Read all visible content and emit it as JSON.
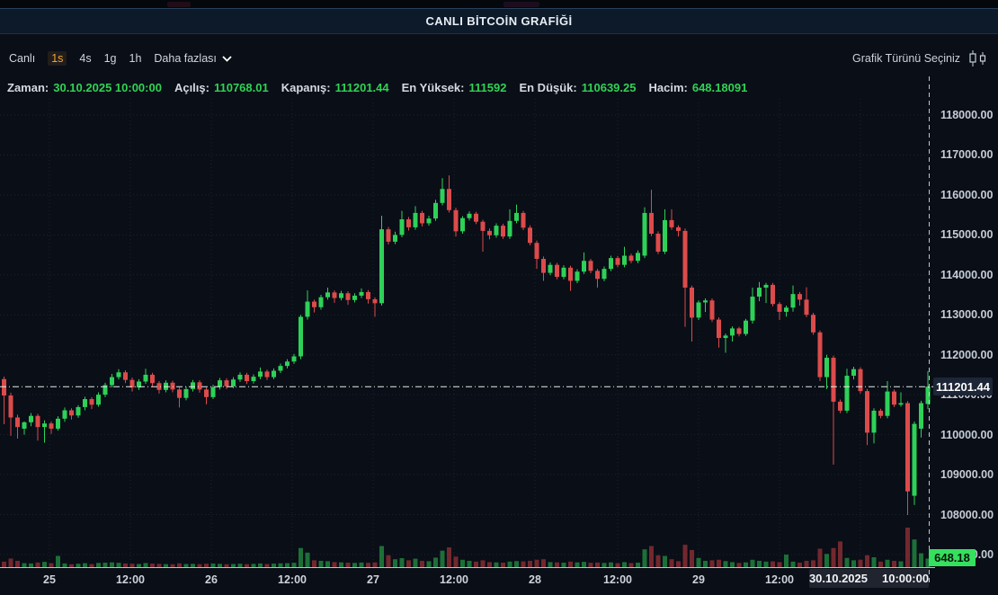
{
  "page": {
    "title": "CANLI BİTCOİN GRAFİĞİ"
  },
  "toolbar": {
    "timeframes": [
      "Canlı",
      "1s",
      "4s",
      "1g",
      "1h"
    ],
    "active_timeframe": "1s",
    "more_label": "Daha fazlası",
    "chart_type_label": "Grafik Türünü Seçiniz"
  },
  "info": {
    "items": [
      {
        "label": "Zaman:",
        "value": "30.10.2025 10:00:00"
      },
      {
        "label": "Açılış:",
        "value": "110768.01"
      },
      {
        "label": "Kapanış:",
        "value": "111201.44"
      },
      {
        "label": "En Yüksek:",
        "value": "111592"
      },
      {
        "label": "En Düşük:",
        "value": "110639.25"
      },
      {
        "label": "Hacim:",
        "value": "648.18091"
      }
    ]
  },
  "chart_data": {
    "type": "candlestick",
    "interval": "1h",
    "title": "CANLI BİTCOİN GRAFİĞİ",
    "legend_position": "none",
    "grid": true,
    "y_ticks": [
      118000,
      117000,
      116000,
      115000,
      114000,
      113000,
      112000,
      111000,
      110000,
      109000,
      108000,
      107000
    ],
    "y_tick_format": "2-decimals",
    "ylim": [
      107000,
      118400
    ],
    "x_ticks": [
      {
        "label": "25",
        "x": 55
      },
      {
        "label": "12:00",
        "x": 145
      },
      {
        "label": "26",
        "x": 235
      },
      {
        "label": "12:00",
        "x": 325
      },
      {
        "label": "27",
        "x": 415
      },
      {
        "label": "12:00",
        "x": 505
      },
      {
        "label": "28",
        "x": 595
      },
      {
        "label": "12:00",
        "x": 687
      },
      {
        "label": "29",
        "x": 777
      },
      {
        "label": "12:00",
        "x": 867
      },
      {
        "label": "",
        "x": 957
      }
    ],
    "last_price_label": "111201.44",
    "last_volume_label": "648.18",
    "last_time_label": {
      "date": "30.10.2025",
      "time": "10:00:00"
    },
    "colors": {
      "up": "#2ed158",
      "down": "#dc4b4b",
      "vol_up": "rgba(46,209,88,0.5)",
      "vol_down": "rgba(185,58,62,0.6)",
      "accent_green": "#30d354",
      "accent_orange": "#f2a43a",
      "label_green_bg": "#35e05e"
    },
    "candles_format": [
      "open",
      "high",
      "low",
      "close",
      "volume"
    ],
    "candles": [
      [
        111390,
        111450,
        110260,
        110980,
        420
      ],
      [
        110980,
        111050,
        109970,
        110430,
        650
      ],
      [
        110430,
        110500,
        109900,
        110190,
        480
      ],
      [
        110150,
        110330,
        110000,
        110310,
        300
      ],
      [
        110310,
        110540,
        110210,
        110470,
        280
      ],
      [
        110470,
        110520,
        109850,
        110190,
        350
      ],
      [
        110190,
        110360,
        109800,
        110280,
        400
      ],
      [
        110280,
        110330,
        110020,
        110150,
        300
      ],
      [
        110150,
        110460,
        110100,
        110400,
        850
      ],
      [
        110400,
        110680,
        110320,
        110610,
        280
      ],
      [
        110610,
        110660,
        110380,
        110480,
        220
      ],
      [
        110480,
        110740,
        110420,
        110690,
        260
      ],
      [
        110690,
        110950,
        110610,
        110890,
        300
      ],
      [
        110890,
        110940,
        110640,
        110750,
        230
      ],
      [
        110750,
        111060,
        110700,
        111000,
        320
      ],
      [
        111000,
        111300,
        110940,
        111240,
        340
      ],
      [
        111240,
        111520,
        111180,
        111440,
        360
      ],
      [
        111440,
        111640,
        111380,
        111560,
        330
      ],
      [
        111560,
        111610,
        111290,
        111370,
        280
      ],
      [
        111370,
        111430,
        111080,
        111180,
        260
      ],
      [
        111180,
        111390,
        111120,
        111330,
        240
      ],
      [
        111330,
        111650,
        111270,
        111500,
        310
      ],
      [
        111500,
        111550,
        111210,
        111290,
        270
      ],
      [
        111290,
        111340,
        111030,
        111120,
        250
      ],
      [
        111120,
        111360,
        111060,
        111300,
        230
      ],
      [
        111300,
        111350,
        111060,
        111130,
        220
      ],
      [
        111130,
        111180,
        110680,
        110920,
        290
      ],
      [
        110920,
        111200,
        110860,
        111140,
        240
      ],
      [
        111140,
        111370,
        111080,
        111310,
        250
      ],
      [
        111310,
        111360,
        111050,
        111130,
        230
      ],
      [
        111130,
        111180,
        110760,
        110940,
        260
      ],
      [
        110940,
        111250,
        110890,
        111190,
        270
      ],
      [
        111190,
        111420,
        111130,
        111360,
        250
      ],
      [
        111360,
        111410,
        111140,
        111210,
        220
      ],
      [
        111210,
        111440,
        111160,
        111380,
        240
      ],
      [
        111380,
        111560,
        111320,
        111500,
        260
      ],
      [
        111500,
        111550,
        111270,
        111340,
        230
      ],
      [
        111340,
        111510,
        111280,
        111450,
        250
      ],
      [
        111450,
        111680,
        111390,
        111580,
        280
      ],
      [
        111580,
        111630,
        111370,
        111440,
        240
      ],
      [
        111440,
        111660,
        111390,
        111600,
        270
      ],
      [
        111600,
        111780,
        111540,
        111720,
        290
      ],
      [
        111720,
        111890,
        111660,
        111830,
        300
      ],
      [
        111830,
        112020,
        111770,
        111960,
        330
      ],
      [
        111960,
        113000,
        111890,
        112950,
        1450
      ],
      [
        112950,
        113610,
        112880,
        113330,
        1100
      ],
      [
        113330,
        113380,
        113060,
        113190,
        520
      ],
      [
        113190,
        113500,
        113130,
        113440,
        480
      ],
      [
        113440,
        113680,
        113380,
        113560,
        450
      ],
      [
        113560,
        113610,
        113300,
        113420,
        380
      ],
      [
        113420,
        113600,
        113360,
        113540,
        360
      ],
      [
        113540,
        113590,
        113250,
        113370,
        340
      ],
      [
        113370,
        113540,
        113310,
        113480,
        320
      ],
      [
        113480,
        113660,
        113420,
        113570,
        350
      ],
      [
        113570,
        113620,
        113280,
        113390,
        330
      ],
      [
        113390,
        113440,
        112950,
        113290,
        360
      ],
      [
        113290,
        115480,
        113230,
        115140,
        1600
      ],
      [
        115140,
        115200,
        114760,
        114830,
        900
      ],
      [
        114830,
        115080,
        114770,
        115000,
        600
      ],
      [
        115000,
        115600,
        114940,
        115390,
        680
      ],
      [
        115390,
        115450,
        115110,
        115190,
        520
      ],
      [
        115190,
        115720,
        115130,
        115550,
        640
      ],
      [
        115550,
        115600,
        115210,
        115290,
        480
      ],
      [
        115290,
        115480,
        115230,
        115410,
        450
      ],
      [
        115410,
        115880,
        115350,
        115800,
        720
      ],
      [
        115800,
        116420,
        115740,
        116150,
        1250
      ],
      [
        116150,
        116490,
        115560,
        115620,
        1500
      ],
      [
        115620,
        115680,
        114960,
        115090,
        800
      ],
      [
        115090,
        115470,
        115030,
        115420,
        560
      ],
      [
        115420,
        115590,
        115360,
        115530,
        480
      ],
      [
        115530,
        115580,
        115270,
        115330,
        420
      ],
      [
        115330,
        115380,
        114580,
        115100,
        520
      ],
      [
        115100,
        115160,
        114890,
        114990,
        380
      ],
      [
        114990,
        115290,
        114930,
        115230,
        360
      ],
      [
        115230,
        115280,
        114900,
        114960,
        340
      ],
      [
        114960,
        115640,
        114900,
        115350,
        420
      ],
      [
        115350,
        115760,
        115290,
        115550,
        460
      ],
      [
        115550,
        115600,
        115120,
        115180,
        440
      ],
      [
        115180,
        115240,
        114740,
        114800,
        480
      ],
      [
        114800,
        114860,
        114150,
        114400,
        560
      ],
      [
        114400,
        114460,
        113850,
        114050,
        600
      ],
      [
        114050,
        114310,
        113990,
        114250,
        380
      ],
      [
        114250,
        114300,
        113890,
        113950,
        360
      ],
      [
        113950,
        114240,
        113890,
        114180,
        340
      ],
      [
        114180,
        114230,
        113600,
        113850,
        420
      ],
      [
        113850,
        114140,
        113790,
        114080,
        360
      ],
      [
        114080,
        114560,
        114020,
        114350,
        400
      ],
      [
        114350,
        114400,
        114040,
        114100,
        330
      ],
      [
        114100,
        114150,
        113680,
        113900,
        350
      ],
      [
        113900,
        114210,
        113840,
        114150,
        320
      ],
      [
        114150,
        114480,
        114090,
        114420,
        360
      ],
      [
        114420,
        114470,
        114190,
        114250,
        300
      ],
      [
        114250,
        114700,
        114190,
        114480,
        380
      ],
      [
        114480,
        114530,
        114290,
        114350,
        310
      ],
      [
        114350,
        114610,
        114290,
        114550,
        340
      ],
      [
        114480,
        115690,
        114420,
        115550,
        1350
      ],
      [
        115550,
        116130,
        114970,
        115030,
        1600
      ],
      [
        115030,
        115090,
        114520,
        114580,
        900
      ],
      [
        114580,
        115640,
        114520,
        115370,
        850
      ],
      [
        115370,
        115640,
        115130,
        115190,
        600
      ],
      [
        115190,
        115240,
        114960,
        115100,
        450
      ],
      [
        115100,
        115160,
        112700,
        113680,
        1700
      ],
      [
        113680,
        113730,
        112330,
        112930,
        1300
      ],
      [
        112930,
        113360,
        112870,
        113310,
        700
      ],
      [
        113310,
        113410,
        113070,
        113360,
        480
      ],
      [
        113360,
        113410,
        112820,
        112880,
        520
      ],
      [
        112880,
        112935,
        112180,
        112420,
        560
      ],
      [
        112420,
        112530,
        112050,
        112480,
        460
      ],
      [
        112480,
        112710,
        112330,
        112660,
        380
      ],
      [
        112660,
        112700,
        112460,
        112520,
        320
      ],
      [
        112520,
        112900,
        112470,
        112855,
        360
      ],
      [
        112855,
        113680,
        112780,
        113455,
        560
      ],
      [
        113455,
        113820,
        113340,
        113680,
        480
      ],
      [
        113680,
        113800,
        113295,
        113750,
        420
      ],
      [
        113750,
        113800,
        113210,
        113270,
        440
      ],
      [
        113270,
        113320,
        112870,
        113075,
        380
      ],
      [
        113075,
        113230,
        112955,
        113180,
        950
      ],
      [
        113180,
        113735,
        113080,
        113520,
        420
      ],
      [
        113520,
        113570,
        113230,
        113380,
        340
      ],
      [
        113380,
        113690,
        112940,
        113000,
        480
      ],
      [
        113000,
        113050,
        112500,
        112560,
        520
      ],
      [
        112560,
        112610,
        111340,
        111440,
        1400
      ],
      [
        111440,
        112000,
        111140,
        111925,
        1000
      ],
      [
        111925,
        111980,
        109250,
        110825,
        1450
      ],
      [
        110825,
        110880,
        110540,
        110600,
        1950
      ],
      [
        110600,
        111650,
        110540,
        111475,
        700
      ],
      [
        111475,
        111700,
        111380,
        111640,
        520
      ],
      [
        111640,
        111690,
        111030,
        111090,
        560
      ],
      [
        111090,
        111140,
        109740,
        110050,
        900
      ],
      [
        110050,
        110660,
        109780,
        110600,
        750
      ],
      [
        110600,
        110650,
        110410,
        110470,
        420
      ],
      [
        110470,
        111340,
        110410,
        111080,
        560
      ],
      [
        111080,
        111130,
        110690,
        110750,
        480
      ],
      [
        110750,
        111060,
        110700,
        110790,
        440
      ],
      [
        110790,
        110840,
        107990,
        108580,
        3000
      ],
      [
        108470,
        110330,
        108240,
        110270,
        2100
      ],
      [
        110150,
        110850,
        109930,
        110790,
        1050
      ],
      [
        110768.01,
        111592,
        110639.25,
        111201.44,
        648.18
      ]
    ]
  }
}
